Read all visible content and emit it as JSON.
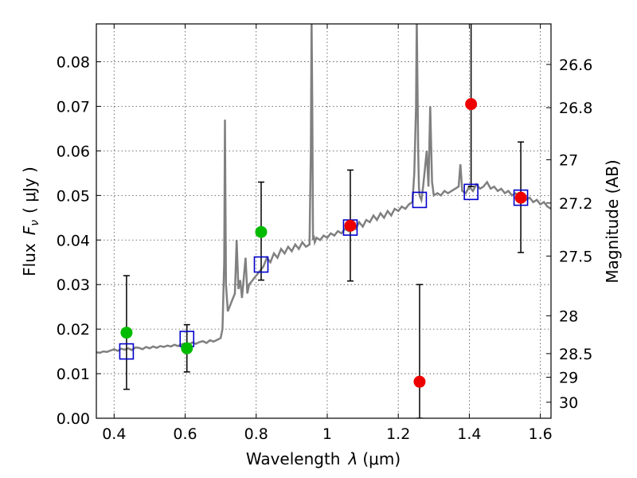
{
  "chart_data": {
    "type": "scatter",
    "xlabel_prefix": "Wavelength",
    "xlabel_symbol": "λ",
    "xlabel_unit": "(μm)",
    "ylabel_prefix": "Flux",
    "ylabel_symbol": "F",
    "ylabel_subscript": "ν",
    "ylabel_unit": "( μJy )",
    "y2label": "Magnitude (AB)",
    "xlim": [
      0.35,
      1.63
    ],
    "ylim": [
      0,
      0.0885
    ],
    "grid": true,
    "x_ticks": [
      0.4,
      0.6,
      0.8,
      1.0,
      1.2,
      1.4,
      1.6
    ],
    "x_tick_labels": [
      "0.4",
      "0.6",
      "0.8",
      "1",
      "1.2",
      "1.4",
      "1.6"
    ],
    "y_ticks": [
      0.0,
      0.01,
      0.02,
      0.03,
      0.04,
      0.05,
      0.06,
      0.07,
      0.08
    ],
    "y_tick_labels": [
      "0.00",
      "0.01",
      "0.02",
      "0.03",
      "0.04",
      "0.05",
      "0.06",
      "0.07",
      "0.08"
    ],
    "y2_ticks": [
      {
        "label": "26.6",
        "flux": 0.0794
      },
      {
        "label": "26.8",
        "flux": 0.0697
      },
      {
        "label": "27",
        "flux": 0.058
      },
      {
        "label": "27.2",
        "flux": 0.0483
      },
      {
        "label": "27.5",
        "flux": 0.0364
      },
      {
        "label": "28",
        "flux": 0.023
      },
      {
        "label": "28.5",
        "flux": 0.0145
      },
      {
        "label": "29",
        "flux": 0.0092
      },
      {
        "label": "30",
        "flux": 0.0036
      }
    ],
    "colors": {
      "model": "#808080",
      "model_photometry": "#0000cc",
      "optical_detections": "#00bb00",
      "nir_detections": "#ee0000",
      "errorbar": "#000000"
    },
    "series": [
      {
        "kind": "model_spectrum",
        "x": [
          0.35,
          0.36,
          0.37,
          0.38,
          0.39,
          0.4,
          0.41,
          0.42,
          0.43,
          0.44,
          0.45,
          0.46,
          0.47,
          0.48,
          0.49,
          0.5,
          0.51,
          0.52,
          0.53,
          0.54,
          0.55,
          0.56,
          0.57,
          0.58,
          0.59,
          0.6,
          0.61,
          0.62,
          0.63,
          0.64,
          0.65,
          0.66,
          0.67,
          0.68,
          0.69,
          0.7,
          0.705,
          0.71,
          0.712,
          0.715,
          0.72,
          0.73,
          0.74,
          0.745,
          0.75,
          0.755,
          0.76,
          0.77,
          0.775,
          0.78,
          0.79,
          0.8,
          0.81,
          0.82,
          0.83,
          0.84,
          0.85,
          0.86,
          0.87,
          0.88,
          0.89,
          0.9,
          0.91,
          0.92,
          0.93,
          0.94,
          0.95,
          0.954,
          0.956,
          0.958,
          0.96,
          0.962,
          0.965,
          0.97,
          0.98,
          0.99,
          1.0,
          1.01,
          1.02,
          1.03,
          1.04,
          1.05,
          1.06,
          1.07,
          1.08,
          1.09,
          1.1,
          1.11,
          1.12,
          1.13,
          1.14,
          1.15,
          1.16,
          1.17,
          1.18,
          1.19,
          1.2,
          1.21,
          1.22,
          1.23,
          1.24,
          1.245,
          1.25,
          1.252,
          1.254,
          1.256,
          1.258,
          1.26,
          1.265,
          1.27,
          1.28,
          1.285,
          1.29,
          1.295,
          1.3,
          1.31,
          1.32,
          1.33,
          1.34,
          1.35,
          1.36,
          1.37,
          1.375,
          1.38,
          1.39,
          1.4,
          1.41,
          1.42,
          1.43,
          1.44,
          1.45,
          1.46,
          1.47,
          1.48,
          1.49,
          1.5,
          1.51,
          1.52,
          1.53,
          1.54,
          1.55,
          1.56,
          1.57,
          1.58,
          1.59,
          1.6,
          1.61,
          1.62,
          1.63
        ],
        "y": [
          0.0148,
          0.0147,
          0.015,
          0.0149,
          0.0152,
          0.0155,
          0.0151,
          0.0156,
          0.0154,
          0.0157,
          0.0153,
          0.0159,
          0.0158,
          0.0155,
          0.016,
          0.0157,
          0.0161,
          0.0158,
          0.0162,
          0.016,
          0.0163,
          0.0161,
          0.0165,
          0.0162,
          0.0166,
          0.0168,
          0.0165,
          0.017,
          0.0167,
          0.0171,
          0.0173,
          0.0169,
          0.0175,
          0.0172,
          0.0176,
          0.018,
          0.02,
          0.035,
          0.067,
          0.03,
          0.024,
          0.026,
          0.028,
          0.04,
          0.029,
          0.031,
          0.027,
          0.036,
          0.028,
          0.03,
          0.031,
          0.032,
          0.033,
          0.034,
          0.036,
          0.035,
          0.037,
          0.036,
          0.038,
          0.037,
          0.0385,
          0.0375,
          0.039,
          0.038,
          0.0395,
          0.0385,
          0.039,
          0.06,
          0.09,
          0.07,
          0.04,
          0.041,
          0.0395,
          0.0405,
          0.04,
          0.041,
          0.0405,
          0.0415,
          0.041,
          0.042,
          0.0415,
          0.0425,
          0.042,
          0.043,
          0.0425,
          0.044,
          0.043,
          0.0445,
          0.044,
          0.0455,
          0.0445,
          0.046,
          0.045,
          0.0465,
          0.0455,
          0.047,
          0.0465,
          0.0475,
          0.047,
          0.048,
          0.0485,
          0.055,
          0.07,
          0.09,
          0.075,
          0.06,
          0.052,
          0.05,
          0.049,
          0.052,
          0.06,
          0.052,
          0.07,
          0.053,
          0.05,
          0.0505,
          0.05,
          0.051,
          0.0505,
          0.051,
          0.0515,
          0.052,
          0.057,
          0.051,
          0.0505,
          0.052,
          0.051,
          0.0525,
          0.0515,
          0.052,
          0.053,
          0.0515,
          0.052,
          0.051,
          0.0515,
          0.0505,
          0.051,
          0.05,
          0.0505,
          0.0495,
          0.05,
          0.049,
          0.0495,
          0.0485,
          0.049,
          0.048,
          0.0485,
          0.0475,
          0.047
        ]
      },
      {
        "kind": "model_photometry",
        "x": [
          0.435,
          0.605,
          0.814,
          1.065,
          1.26,
          1.405,
          1.545
        ],
        "y": [
          0.015,
          0.0178,
          0.0345,
          0.0428,
          0.049,
          0.0508,
          0.0495
        ]
      },
      {
        "kind": "optical_detections",
        "x": [
          0.435,
          0.605,
          0.814
        ],
        "y": [
          0.0192,
          0.0157,
          0.0418
        ],
        "yerr_low": [
          0.0065,
          0.0104,
          0.031
        ],
        "yerr_high": [
          0.032,
          0.021,
          0.053
        ]
      },
      {
        "kind": "nir_detections",
        "x": [
          1.065,
          1.26,
          1.405,
          1.545
        ],
        "y": [
          0.0432,
          0.0082,
          0.0705,
          0.0495
        ],
        "yerr_low": [
          0.0308,
          0.0,
          0.052,
          0.0372
        ],
        "yerr_high": [
          0.0557,
          0.03,
          0.09,
          0.062
        ]
      }
    ]
  }
}
